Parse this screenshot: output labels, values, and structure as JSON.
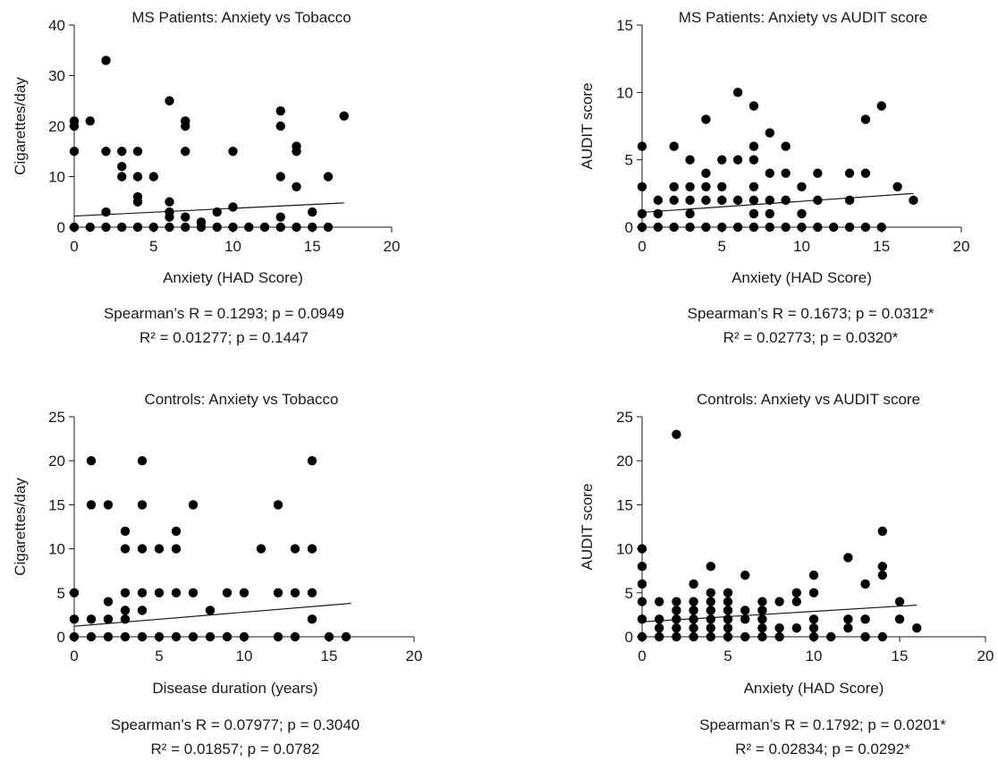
{
  "chart_data": [
    {
      "type": "scatter",
      "title": "MS Patients: Anxiety vs Tobacco",
      "xlabel": "Anxiety (HAD Score)",
      "ylabel": "Cigarettes/day",
      "xlim": [
        0,
        20
      ],
      "ylim": [
        0,
        40
      ],
      "xticks": [
        "0",
        "5",
        "10",
        "15",
        "20"
      ],
      "yticks": [
        "0",
        "10",
        "20",
        "30",
        "40"
      ],
      "stats": [
        "Spearman’s R = 0.1293; p = 0.0949",
        "R² = 0.01277; p = 0.1447"
      ],
      "trend": {
        "x": [
          0,
          17
        ],
        "y": [
          2.2,
          4.8
        ]
      },
      "points": [
        [
          0,
          0
        ],
        [
          0,
          15
        ],
        [
          0,
          20
        ],
        [
          0,
          21
        ],
        [
          1,
          0
        ],
        [
          1,
          21
        ],
        [
          2,
          0
        ],
        [
          2,
          3
        ],
        [
          2,
          15
        ],
        [
          2,
          33
        ],
        [
          3,
          0
        ],
        [
          3,
          10
        ],
        [
          3,
          12
        ],
        [
          3,
          15
        ],
        [
          4,
          0
        ],
        [
          4,
          5
        ],
        [
          4,
          6
        ],
        [
          4,
          10
        ],
        [
          4,
          15
        ],
        [
          5,
          0
        ],
        [
          5,
          10
        ],
        [
          6,
          0
        ],
        [
          6,
          2
        ],
        [
          6,
          3
        ],
        [
          6,
          5
        ],
        [
          6,
          25
        ],
        [
          7,
          0
        ],
        [
          7,
          2
        ],
        [
          7,
          15
        ],
        [
          7,
          20
        ],
        [
          7,
          21
        ],
        [
          8,
          0
        ],
        [
          8,
          1
        ],
        [
          9,
          0
        ],
        [
          9,
          3
        ],
        [
          10,
          0
        ],
        [
          10,
          4
        ],
        [
          10,
          15
        ],
        [
          11,
          0
        ],
        [
          12,
          0
        ],
        [
          13,
          0
        ],
        [
          13,
          2
        ],
        [
          13,
          10
        ],
        [
          13,
          20
        ],
        [
          13,
          23
        ],
        [
          14,
          0
        ],
        [
          14,
          8
        ],
        [
          14,
          15
        ],
        [
          14,
          16
        ],
        [
          15,
          0
        ],
        [
          15,
          3
        ],
        [
          16,
          0
        ],
        [
          16,
          10
        ],
        [
          17,
          22
        ]
      ]
    },
    {
      "type": "scatter",
      "title": "MS Patients: Anxiety vs AUDIT score",
      "xlabel": "Anxiety (HAD Score)",
      "ylabel": "AUDIT score",
      "xlim": [
        0,
        20
      ],
      "ylim": [
        0,
        15
      ],
      "xticks": [
        "0",
        "5",
        "10",
        "15",
        "20"
      ],
      "yticks": [
        "0",
        "5",
        "10",
        "15"
      ],
      "stats": [
        "Spearman’s R = 0.1673; p = 0.0312*",
        "R² = 0.02773; p = 0.0320*"
      ],
      "trend": {
        "x": [
          0,
          17
        ],
        "y": [
          1.1,
          2.5
        ]
      },
      "points": [
        [
          0,
          0
        ],
        [
          0,
          1
        ],
        [
          0,
          3
        ],
        [
          0,
          6
        ],
        [
          1,
          0
        ],
        [
          1,
          1
        ],
        [
          1,
          2
        ],
        [
          2,
          0
        ],
        [
          2,
          2
        ],
        [
          2,
          3
        ],
        [
          2,
          6
        ],
        [
          3,
          0
        ],
        [
          3,
          1
        ],
        [
          3,
          2
        ],
        [
          3,
          3
        ],
        [
          3,
          5
        ],
        [
          4,
          0
        ],
        [
          4,
          2
        ],
        [
          4,
          3
        ],
        [
          4,
          4
        ],
        [
          4,
          8
        ],
        [
          5,
          0
        ],
        [
          5,
          2
        ],
        [
          5,
          3
        ],
        [
          5,
          5
        ],
        [
          6,
          0
        ],
        [
          6,
          2
        ],
        [
          6,
          5
        ],
        [
          6,
          10
        ],
        [
          7,
          0
        ],
        [
          7,
          1
        ],
        [
          7,
          2
        ],
        [
          7,
          3
        ],
        [
          7,
          5
        ],
        [
          7,
          6
        ],
        [
          7,
          9
        ],
        [
          8,
          0
        ],
        [
          8,
          1
        ],
        [
          8,
          2
        ],
        [
          8,
          4
        ],
        [
          8,
          7
        ],
        [
          9,
          0
        ],
        [
          9,
          2
        ],
        [
          9,
          4
        ],
        [
          9,
          6
        ],
        [
          10,
          0
        ],
        [
          10,
          1
        ],
        [
          10,
          3
        ],
        [
          11,
          0
        ],
        [
          11,
          2
        ],
        [
          11,
          4
        ],
        [
          12,
          0
        ],
        [
          13,
          0
        ],
        [
          13,
          2
        ],
        [
          13,
          4
        ],
        [
          14,
          0
        ],
        [
          14,
          4
        ],
        [
          14,
          8
        ],
        [
          15,
          0
        ],
        [
          15,
          9
        ],
        [
          16,
          3
        ],
        [
          17,
          2
        ]
      ]
    },
    {
      "type": "scatter",
      "title": "Controls: Anxiety vs Tobacco",
      "xlabel": "Disease duration (years)",
      "ylabel": "Cigarettes/day",
      "xlim": [
        0,
        20
      ],
      "ylim": [
        0,
        25
      ],
      "xticks": [
        "0",
        "5",
        "10",
        "15",
        "20"
      ],
      "yticks": [
        "0",
        "5",
        "10",
        "15",
        "20",
        "25"
      ],
      "stats": [
        "Spearman’s R = 0.07977; p = 0.3040",
        "R² = 0.01857; p = 0.0782"
      ],
      "trend": {
        "x": [
          0,
          16.3
        ],
        "y": [
          1.2,
          3.8
        ]
      },
      "points": [
        [
          0,
          0
        ],
        [
          0,
          2
        ],
        [
          0,
          5
        ],
        [
          1,
          0
        ],
        [
          1,
          2
        ],
        [
          1,
          15
        ],
        [
          1,
          20
        ],
        [
          2,
          0
        ],
        [
          2,
          2
        ],
        [
          2,
          4
        ],
        [
          2,
          15
        ],
        [
          3,
          0
        ],
        [
          3,
          2
        ],
        [
          3,
          3
        ],
        [
          3,
          5
        ],
        [
          3,
          10
        ],
        [
          3,
          12
        ],
        [
          4,
          0
        ],
        [
          4,
          3
        ],
        [
          4,
          5
        ],
        [
          4,
          10
        ],
        [
          4,
          15
        ],
        [
          4,
          20
        ],
        [
          5,
          0
        ],
        [
          5,
          5
        ],
        [
          5,
          10
        ],
        [
          6,
          0
        ],
        [
          6,
          5
        ],
        [
          6,
          10
        ],
        [
          6,
          12
        ],
        [
          7,
          0
        ],
        [
          7,
          5
        ],
        [
          7,
          15
        ],
        [
          8,
          0
        ],
        [
          8,
          3
        ],
        [
          9,
          0
        ],
        [
          9,
          5
        ],
        [
          10,
          0
        ],
        [
          10,
          5
        ],
        [
          11,
          10
        ],
        [
          12,
          0
        ],
        [
          12,
          5
        ],
        [
          12,
          15
        ],
        [
          13,
          0
        ],
        [
          13,
          5
        ],
        [
          13,
          10
        ],
        [
          14,
          2
        ],
        [
          14,
          5
        ],
        [
          14,
          10
        ],
        [
          14,
          20
        ],
        [
          15,
          0
        ],
        [
          16,
          0
        ]
      ]
    },
    {
      "type": "scatter",
      "title": "Controls: Anxiety vs AUDIT score",
      "xlabel": "Anxiety (HAD Score)",
      "ylabel": "AUDIT score",
      "xlim": [
        0,
        20
      ],
      "ylim": [
        0,
        25
      ],
      "xticks": [
        "0",
        "5",
        "10",
        "15",
        "20"
      ],
      "yticks": [
        "0",
        "5",
        "10",
        "15",
        "20",
        "25"
      ],
      "stats": [
        "Spearman’s R = 0.1792; p = 0.0201*",
        "R² = 0.02834; p = 0.0292*"
      ],
      "trend": {
        "x": [
          0,
          16
        ],
        "y": [
          1.7,
          3.6
        ]
      },
      "points": [
        [
          0,
          0
        ],
        [
          0,
          2
        ],
        [
          0,
          4
        ],
        [
          0,
          6
        ],
        [
          0,
          8
        ],
        [
          0,
          10
        ],
        [
          1,
          0
        ],
        [
          1,
          1
        ],
        [
          1,
          2
        ],
        [
          1,
          4
        ],
        [
          2,
          0
        ],
        [
          2,
          1
        ],
        [
          2,
          2
        ],
        [
          2,
          3
        ],
        [
          2,
          4
        ],
        [
          2,
          23
        ],
        [
          3,
          0
        ],
        [
          3,
          1
        ],
        [
          3,
          2
        ],
        [
          3,
          3
        ],
        [
          3,
          4
        ],
        [
          3,
          6
        ],
        [
          4,
          0
        ],
        [
          4,
          1
        ],
        [
          4,
          2
        ],
        [
          4,
          3
        ],
        [
          4,
          4
        ],
        [
          4,
          5
        ],
        [
          4,
          8
        ],
        [
          5,
          0
        ],
        [
          5,
          1
        ],
        [
          5,
          2
        ],
        [
          5,
          3
        ],
        [
          5,
          4
        ],
        [
          5,
          5
        ],
        [
          6,
          0
        ],
        [
          6,
          2
        ],
        [
          6,
          3
        ],
        [
          6,
          7
        ],
        [
          7,
          0
        ],
        [
          7,
          1
        ],
        [
          7,
          2
        ],
        [
          7,
          3
        ],
        [
          7,
          4
        ],
        [
          8,
          0
        ],
        [
          8,
          1
        ],
        [
          8,
          4
        ],
        [
          9,
          1
        ],
        [
          9,
          4
        ],
        [
          9,
          5
        ],
        [
          10,
          0
        ],
        [
          10,
          1
        ],
        [
          10,
          2
        ],
        [
          10,
          5
        ],
        [
          10,
          7
        ],
        [
          11,
          0
        ],
        [
          12,
          1
        ],
        [
          12,
          2
        ],
        [
          12,
          9
        ],
        [
          13,
          0
        ],
        [
          13,
          2
        ],
        [
          13,
          6
        ],
        [
          14,
          0
        ],
        [
          14,
          7
        ],
        [
          14,
          8
        ],
        [
          14,
          12
        ],
        [
          15,
          2
        ],
        [
          15,
          4
        ],
        [
          16,
          1
        ]
      ]
    }
  ]
}
